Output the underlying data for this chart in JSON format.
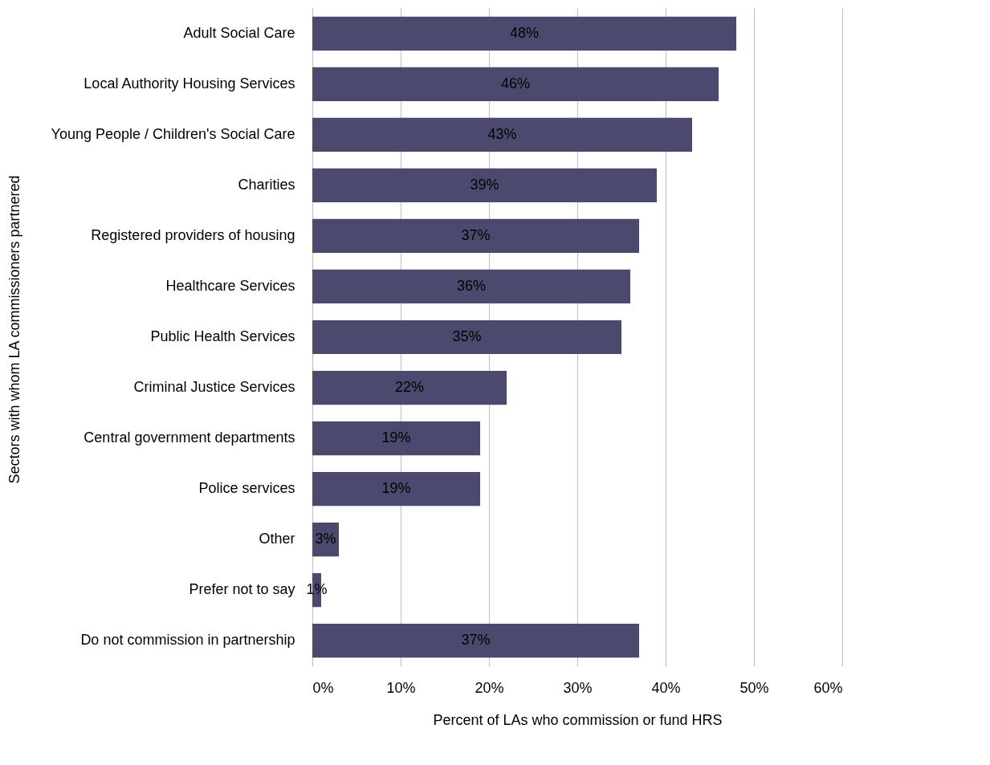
{
  "chart_data": {
    "type": "bar",
    "orientation": "horizontal",
    "xlabel": "Percent of LAs who commission or fund HRS",
    "ylabel": "Sectors with whom LA commissioners partnered",
    "categories": [
      "Adult Social Care",
      "Local Authority Housing Services",
      "Young People / Children's Social Care",
      "Charities",
      "Registered providers of housing",
      "Healthcare Services",
      "Public Health Services",
      "Criminal Justice Services",
      "Central government departments",
      "Police services",
      "Other",
      "Prefer not to say",
      "Do not commission in partnership"
    ],
    "values": [
      48,
      46,
      43,
      39,
      37,
      36,
      35,
      22,
      19,
      19,
      3,
      1,
      37
    ],
    "value_labels": [
      "48%",
      "46%",
      "43%",
      "39%",
      "37%",
      "36%",
      "35%",
      "22%",
      "19%",
      "19%",
      "3%",
      "1%",
      "37%"
    ],
    "color": "#4b4a6e",
    "xlim": [
      0,
      60
    ],
    "xticks": [
      {
        "value": 0,
        "label": "0%"
      },
      {
        "value": 10,
        "label": "10%"
      },
      {
        "value": 20,
        "label": "20%"
      },
      {
        "value": 30,
        "label": "30%"
      },
      {
        "value": 40,
        "label": "40%"
      },
      {
        "value": 50,
        "label": "50%"
      },
      {
        "value": 60,
        "label": "60%"
      }
    ],
    "grid": "x"
  }
}
